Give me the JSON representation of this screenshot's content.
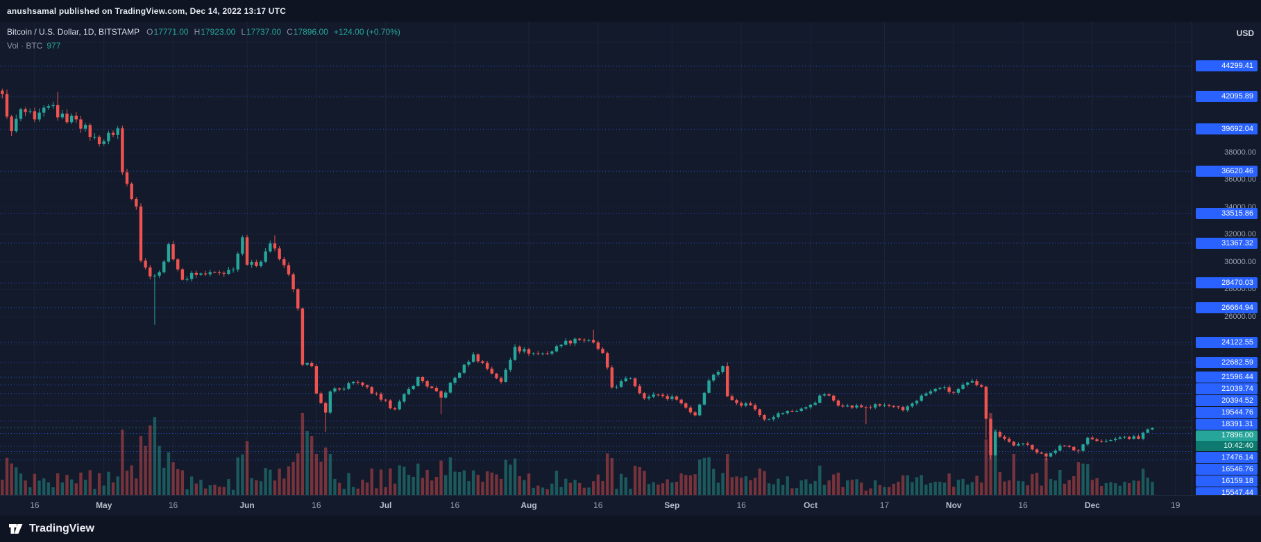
{
  "header": {
    "publish_line": "anushsamal published on TradingView.com, Dec 14, 2022 13:17 UTC"
  },
  "legend": {
    "symbol": "Bitcoin / U.S. Dollar, 1D, BITSTAMP",
    "ohlc": {
      "o_label": "O",
      "o": "17771.00",
      "h_label": "H",
      "h": "17923.00",
      "l_label": "L",
      "l": "17737.00",
      "c_label": "C",
      "c": "17896.00",
      "change": "+124.00 (+0.70%)"
    },
    "volume": {
      "label": "Vol · BTC",
      "value": "977"
    }
  },
  "price_axis": {
    "currency": "USD",
    "level_labels": [
      44299.41,
      42095.89,
      39692.04,
      36620.46,
      33515.86,
      31367.32,
      28470.03,
      26664.94,
      24122.55,
      22682.59,
      21596.44,
      21039.74,
      20394.52,
      19544.76,
      18391.31,
      17476.14,
      16546.76,
      16159.18,
      15547.44
    ],
    "grid_labels": [
      "38000.00",
      "36000.00",
      "34000.00",
      "32000.00",
      "30000.00",
      "28000.00",
      "26000.00"
    ],
    "last_price": {
      "value": "17896.00",
      "countdown": "10:42:40"
    }
  },
  "time_axis": {
    "ticks": [
      {
        "label": "16",
        "date": "2022-04-16",
        "strong": false
      },
      {
        "label": "May",
        "date": "2022-05-01",
        "strong": true
      },
      {
        "label": "16",
        "date": "2022-05-16",
        "strong": false
      },
      {
        "label": "Jun",
        "date": "2022-06-01",
        "strong": true
      },
      {
        "label": "16",
        "date": "2022-06-16",
        "strong": false
      },
      {
        "label": "Jul",
        "date": "2022-07-01",
        "strong": true
      },
      {
        "label": "16",
        "date": "2022-07-16",
        "strong": false
      },
      {
        "label": "Aug",
        "date": "2022-08-01",
        "strong": true
      },
      {
        "label": "16",
        "date": "2022-08-16",
        "strong": false
      },
      {
        "label": "Sep",
        "date": "2022-09-01",
        "strong": true
      },
      {
        "label": "16",
        "date": "2022-09-16",
        "strong": false
      },
      {
        "label": "Oct",
        "date": "2022-10-01",
        "strong": true
      },
      {
        "label": "17",
        "date": "2022-10-17",
        "strong": false
      },
      {
        "label": "Nov",
        "date": "2022-11-01",
        "strong": true
      },
      {
        "label": "16",
        "date": "2022-11-16",
        "strong": false
      },
      {
        "label": "Dec",
        "date": "2022-12-01",
        "strong": true
      },
      {
        "label": "19",
        "date": "2022-12-19",
        "strong": false
      }
    ]
  },
  "footer": {
    "brand": "TradingView"
  },
  "colors": {
    "up": "#26a69a",
    "down": "#ef5350",
    "accent_blue": "#2962ff",
    "bg": "#131a2b",
    "axis_text": "#9aa1b2"
  },
  "chart_data": {
    "type": "candlestick",
    "title": "Bitcoin / U.S. Dollar, 1D, BITSTAMP",
    "interval": "1D",
    "x_range": [
      "2022-04-09",
      "2022-12-14"
    ],
    "y_range": [
      13000,
      47500
    ],
    "legend_position": "top-left",
    "grid": true,
    "last_candle": {
      "open": 17771,
      "high": 17923,
      "low": 17737,
      "close": 17896,
      "volume_btc": 977
    },
    "horizontal_levels": [
      44299.41,
      42095.89,
      39692.04,
      36620.46,
      33515.86,
      31367.32,
      28470.03,
      26664.94,
      24122.55,
      22682.59,
      21596.44,
      21039.74,
      20394.52,
      19544.76,
      18391.31,
      17476.14,
      16546.76,
      16159.18,
      15547.44
    ],
    "price_path": [
      [
        "2022-04-09",
        42250
      ],
      [
        "2022-04-11",
        39550
      ],
      [
        "2022-04-13",
        41150
      ],
      [
        "2022-04-16",
        40400
      ],
      [
        "2022-04-20",
        41450
      ],
      [
        "2022-04-21",
        40550
      ],
      [
        "2022-04-25",
        40400
      ],
      [
        "2022-04-30",
        38600
      ],
      [
        "2022-05-04",
        39750
      ],
      [
        "2022-05-05",
        36550
      ],
      [
        "2022-05-08",
        34050
      ],
      [
        "2022-05-09",
        30100
      ],
      [
        "2022-05-11",
        28950
      ],
      [
        "2022-05-12",
        29000
      ],
      [
        "2022-05-13",
        29250
      ],
      [
        "2022-05-15",
        31300
      ],
      [
        "2022-05-18",
        28700
      ],
      [
        "2022-05-20",
        29200
      ],
      [
        "2022-05-23",
        29100
      ],
      [
        "2022-05-26",
        29200
      ],
      [
        "2022-05-29",
        29450
      ],
      [
        "2022-05-31",
        31800
      ],
      [
        "2022-06-01",
        29800
      ],
      [
        "2022-06-03",
        29700
      ],
      [
        "2022-06-06",
        31350
      ],
      [
        "2022-06-08",
        30200
      ],
      [
        "2022-06-10",
        29100
      ],
      [
        "2022-06-12",
        26600
      ],
      [
        "2022-06-13",
        22500
      ],
      [
        "2022-06-15",
        22400
      ],
      [
        "2022-06-16",
        20400
      ],
      [
        "2022-06-18",
        19000
      ],
      [
        "2022-06-19",
        20550
      ],
      [
        "2022-06-21",
        20700
      ],
      [
        "2022-06-24",
        21250
      ],
      [
        "2022-06-26",
        21000
      ],
      [
        "2022-06-30",
        19950
      ],
      [
        "2022-07-03",
        19250
      ],
      [
        "2022-07-08",
        21600
      ],
      [
        "2022-07-13",
        20100
      ],
      [
        "2022-07-18",
        22500
      ],
      [
        "2022-07-20",
        23250
      ],
      [
        "2022-07-26",
        21250
      ],
      [
        "2022-07-29",
        23800
      ],
      [
        "2022-08-01",
        23300
      ],
      [
        "2022-08-05",
        23300
      ],
      [
        "2022-08-08",
        23950
      ],
      [
        "2022-08-11",
        24400
      ],
      [
        "2022-08-14",
        24300
      ],
      [
        "2022-08-17",
        23350
      ],
      [
        "2022-08-19",
        20850
      ],
      [
        "2022-08-23",
        21500
      ],
      [
        "2022-08-26",
        20050
      ],
      [
        "2022-08-29",
        20300
      ],
      [
        "2022-09-02",
        19950
      ],
      [
        "2022-09-06",
        18800
      ],
      [
        "2022-09-09",
        21350
      ],
      [
        "2022-09-12",
        22400
      ],
      [
        "2022-09-13",
        20200
      ],
      [
        "2022-09-15",
        19700
      ],
      [
        "2022-09-18",
        19550
      ],
      [
        "2022-09-21",
        18500
      ],
      [
        "2022-09-24",
        18950
      ],
      [
        "2022-09-27",
        19100
      ],
      [
        "2022-09-30",
        19400
      ],
      [
        "2022-10-04",
        20340
      ],
      [
        "2022-10-08",
        19450
      ],
      [
        "2022-10-13",
        19400
      ],
      [
        "2022-10-17",
        19550
      ],
      [
        "2022-10-21",
        19170
      ],
      [
        "2022-10-25",
        20250
      ],
      [
        "2022-10-29",
        20800
      ],
      [
        "2022-11-01",
        20450
      ],
      [
        "2022-11-05",
        21300
      ],
      [
        "2022-11-07",
        20900
      ],
      [
        "2022-11-08",
        18550
      ],
      [
        "2022-11-09",
        15900
      ],
      [
        "2022-11-10",
        17600
      ],
      [
        "2022-11-14",
        16600
      ],
      [
        "2022-11-17",
        16650
      ],
      [
        "2022-11-21",
        15800
      ],
      [
        "2022-11-24",
        16600
      ],
      [
        "2022-11-28",
        16200
      ],
      [
        "2022-11-30",
        17170
      ],
      [
        "2022-12-03",
        16900
      ],
      [
        "2022-12-05",
        17000
      ],
      [
        "2022-12-08",
        17230
      ],
      [
        "2022-12-11",
        17100
      ],
      [
        "2022-12-13",
        17780
      ],
      [
        "2022-12-14",
        17896
      ]
    ],
    "wick_lows": [
      [
        "2022-04-11",
        39200
      ],
      [
        "2022-05-12",
        25400
      ],
      [
        "2022-06-18",
        17600
      ],
      [
        "2022-07-13",
        18900
      ],
      [
        "2022-10-13",
        18150
      ],
      [
        "2022-11-08",
        17130
      ],
      [
        "2022-11-09",
        15590
      ],
      [
        "2022-11-21",
        15476
      ],
      [
        "2022-11-28",
        16000
      ]
    ],
    "wick_highs": [
      [
        "2022-04-21",
        42400
      ],
      [
        "2022-06-07",
        31950
      ],
      [
        "2022-08-15",
        25050
      ],
      [
        "2022-09-13",
        22650
      ],
      [
        "2022-11-05",
        21470
      ]
    ],
    "volume_spikes_rel": [
      [
        "2022-05-09",
        0.72
      ],
      [
        "2022-05-10",
        0.6
      ],
      [
        "2022-05-11",
        0.85
      ],
      [
        "2022-05-12",
        0.95
      ],
      [
        "2022-05-13",
        0.6
      ],
      [
        "2022-06-13",
        1.0
      ],
      [
        "2022-06-14",
        0.78
      ],
      [
        "2022-06-15",
        0.72
      ],
      [
        "2022-06-16",
        0.5
      ],
      [
        "2022-06-18",
        0.58
      ],
      [
        "2022-06-19",
        0.5
      ],
      [
        "2022-07-13",
        0.42
      ],
      [
        "2022-08-19",
        0.45
      ],
      [
        "2022-09-13",
        0.5
      ],
      [
        "2022-11-08",
        0.68
      ],
      [
        "2022-11-09",
        1.0
      ],
      [
        "2022-11-10",
        0.8
      ],
      [
        "2022-11-14",
        0.5
      ],
      [
        "2022-11-21",
        0.45
      ],
      [
        "2022-11-28",
        0.4
      ]
    ]
  }
}
